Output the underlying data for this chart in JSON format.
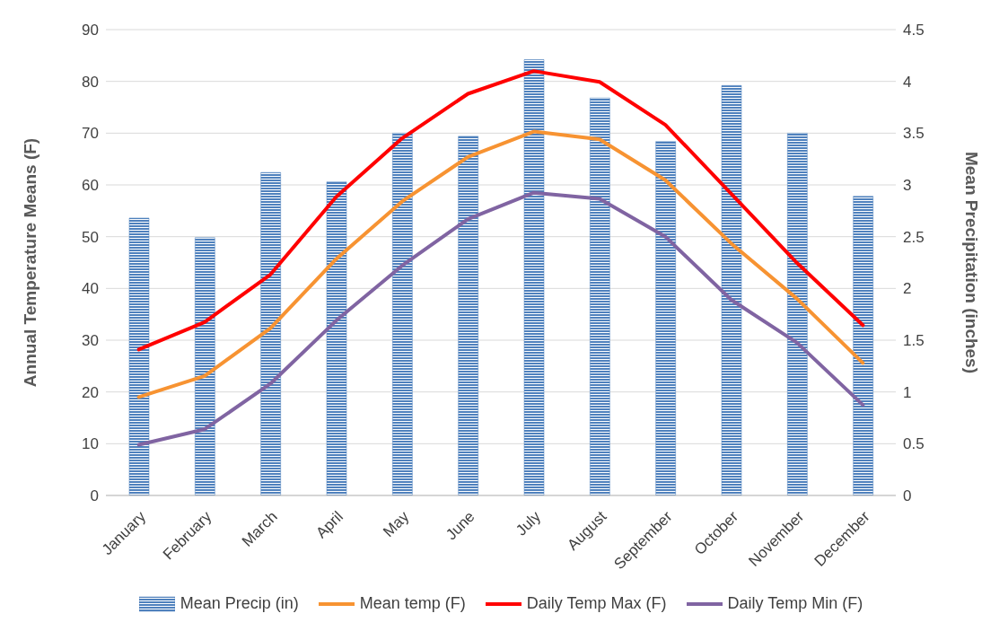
{
  "chart_data": {
    "type": "bar",
    "categories": [
      "January",
      "February",
      "March",
      "April",
      "May",
      "June",
      "July",
      "August",
      "September",
      "October",
      "November",
      "December"
    ],
    "ylabel": "Annual Temperature Means (F)",
    "y2label": "Mean Precipitation (inches)",
    "ylim": [
      0,
      90
    ],
    "yticks": [
      0,
      10,
      20,
      30,
      40,
      50,
      60,
      70,
      80,
      90
    ],
    "y2lim": [
      0,
      4.5
    ],
    "y2ticks": [
      0,
      0.5,
      1,
      1.5,
      2,
      2.5,
      3,
      3.5,
      4,
      4.5
    ],
    "grid": "y",
    "legend": "bottom",
    "marker": "none",
    "line_style": "solid",
    "series": [
      {
        "name": "Mean Precip (in)",
        "axis": "y2",
        "color": "#4f81bd",
        "values": [
          2.68,
          2.49,
          3.12,
          3.03,
          3.5,
          3.47,
          4.21,
          3.84,
          3.42,
          3.96,
          3.5,
          2.89
        ]
      },
      {
        "name": "Mean temp (F)",
        "type": "line",
        "color": "#f79332",
        "values": [
          19,
          23.1,
          32.3,
          45.7,
          56.8,
          65.4,
          70.3,
          68.8,
          60.9,
          48.7,
          38,
          25.6
        ]
      },
      {
        "name": "Daily Temp Max (F)",
        "type": "line",
        "color": "#ff0000",
        "values": [
          28.2,
          33.5,
          42.7,
          57.7,
          69,
          77.6,
          82,
          79.9,
          71.6,
          58.3,
          44.9,
          32.9
        ]
      },
      {
        "name": "Daily  Temp Min (F)",
        "type": "line",
        "color": "#8064a2",
        "values": [
          9.8,
          12.8,
          21.6,
          33.8,
          44.4,
          53.4,
          58.5,
          57.3,
          50,
          37.8,
          29.5,
          17.5
        ]
      }
    ]
  }
}
